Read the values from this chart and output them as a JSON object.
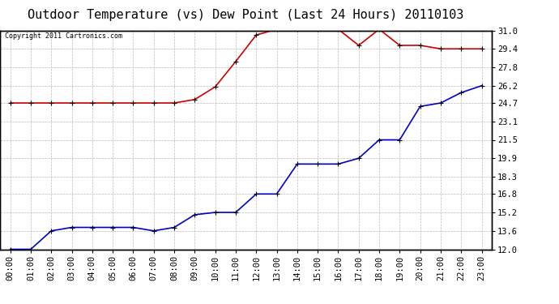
{
  "title": "Outdoor Temperature (vs) Dew Point (Last 24 Hours) 20110103",
  "copyright_text": "Copyright 2011 Cartronics.com",
  "x_labels": [
    "00:00",
    "01:00",
    "02:00",
    "03:00",
    "04:00",
    "05:00",
    "06:00",
    "07:00",
    "08:00",
    "09:00",
    "10:00",
    "11:00",
    "12:00",
    "13:00",
    "14:00",
    "15:00",
    "16:00",
    "17:00",
    "18:00",
    "19:00",
    "20:00",
    "21:00",
    "22:00",
    "23:00"
  ],
  "temp_data": [
    12.0,
    12.0,
    13.6,
    13.9,
    13.9,
    13.9,
    13.9,
    13.6,
    13.9,
    15.0,
    15.2,
    15.2,
    16.8,
    16.8,
    19.4,
    19.4,
    19.4,
    19.9,
    21.5,
    21.5,
    24.4,
    24.7,
    25.6,
    26.2
  ],
  "dew_data": [
    24.7,
    24.7,
    24.7,
    24.7,
    24.7,
    24.7,
    24.7,
    24.7,
    24.7,
    25.0,
    26.1,
    28.3,
    30.6,
    31.1,
    31.1,
    31.1,
    31.1,
    29.7,
    31.1,
    29.7,
    29.7,
    29.4,
    29.4,
    29.4
  ],
  "temp_color": "#0000CC",
  "dew_color": "#CC0000",
  "ylim_min": 12.0,
  "ylim_max": 31.0,
  "yticks": [
    12.0,
    13.6,
    15.2,
    16.8,
    18.3,
    19.9,
    21.5,
    23.1,
    24.7,
    26.2,
    27.8,
    29.4,
    31.0
  ],
  "ytick_labels": [
    "12.0",
    "13.6",
    "15.2",
    "16.8",
    "18.3",
    "19.9",
    "21.5",
    "23.1",
    "24.7",
    "26.2",
    "27.8",
    "29.4",
    "31.0"
  ],
  "background_color": "#ffffff",
  "grid_color": "#bbbbbb",
  "title_fontsize": 11,
  "tick_fontsize": 7.5,
  "marker": "+",
  "markersize": 5,
  "linewidth": 1.2
}
